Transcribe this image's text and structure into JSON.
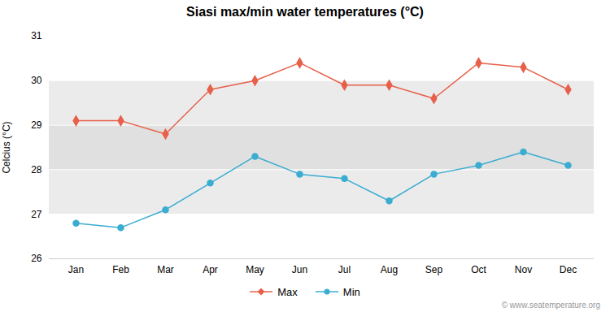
{
  "chart_data": {
    "type": "line",
    "title": "Siasi max/min water temperatures (°C)",
    "ylabel": "Celcius (°C)",
    "categories": [
      "Jan",
      "Feb",
      "Mar",
      "Apr",
      "May",
      "Jun",
      "Jul",
      "Aug",
      "Sep",
      "Oct",
      "Nov",
      "Dec"
    ],
    "series": [
      {
        "name": "Max",
        "color": "#e8604a",
        "marker": "diamond",
        "values": [
          29.1,
          29.1,
          28.8,
          29.8,
          30.0,
          30.4,
          29.9,
          29.9,
          29.6,
          30.4,
          30.3,
          29.8
        ]
      },
      {
        "name": "Min",
        "color": "#3aadd0",
        "marker": "circle",
        "values": [
          26.8,
          26.7,
          27.1,
          27.7,
          28.3,
          27.9,
          27.8,
          27.3,
          27.9,
          28.1,
          28.4,
          28.1
        ]
      }
    ],
    "bands": [
      {
        "ymin": 27.0,
        "ymax": 30.0,
        "color": "#ebebeb"
      },
      {
        "ymin": 28.0,
        "ymax": 29.0,
        "color": "#e0e0e0"
      }
    ],
    "ylim": [
      26.0,
      31.0
    ],
    "yticks": [
      26,
      27,
      28,
      29,
      30,
      31
    ],
    "grid": true,
    "legend": "bottom",
    "annotations": [
      "© www.seatemperature.org"
    ]
  }
}
